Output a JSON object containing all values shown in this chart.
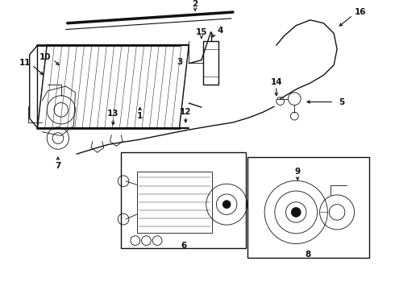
{
  "bg_color": "#ffffff",
  "line_color": "#111111",
  "lw_main": 1.0,
  "lw_thin": 0.6
}
